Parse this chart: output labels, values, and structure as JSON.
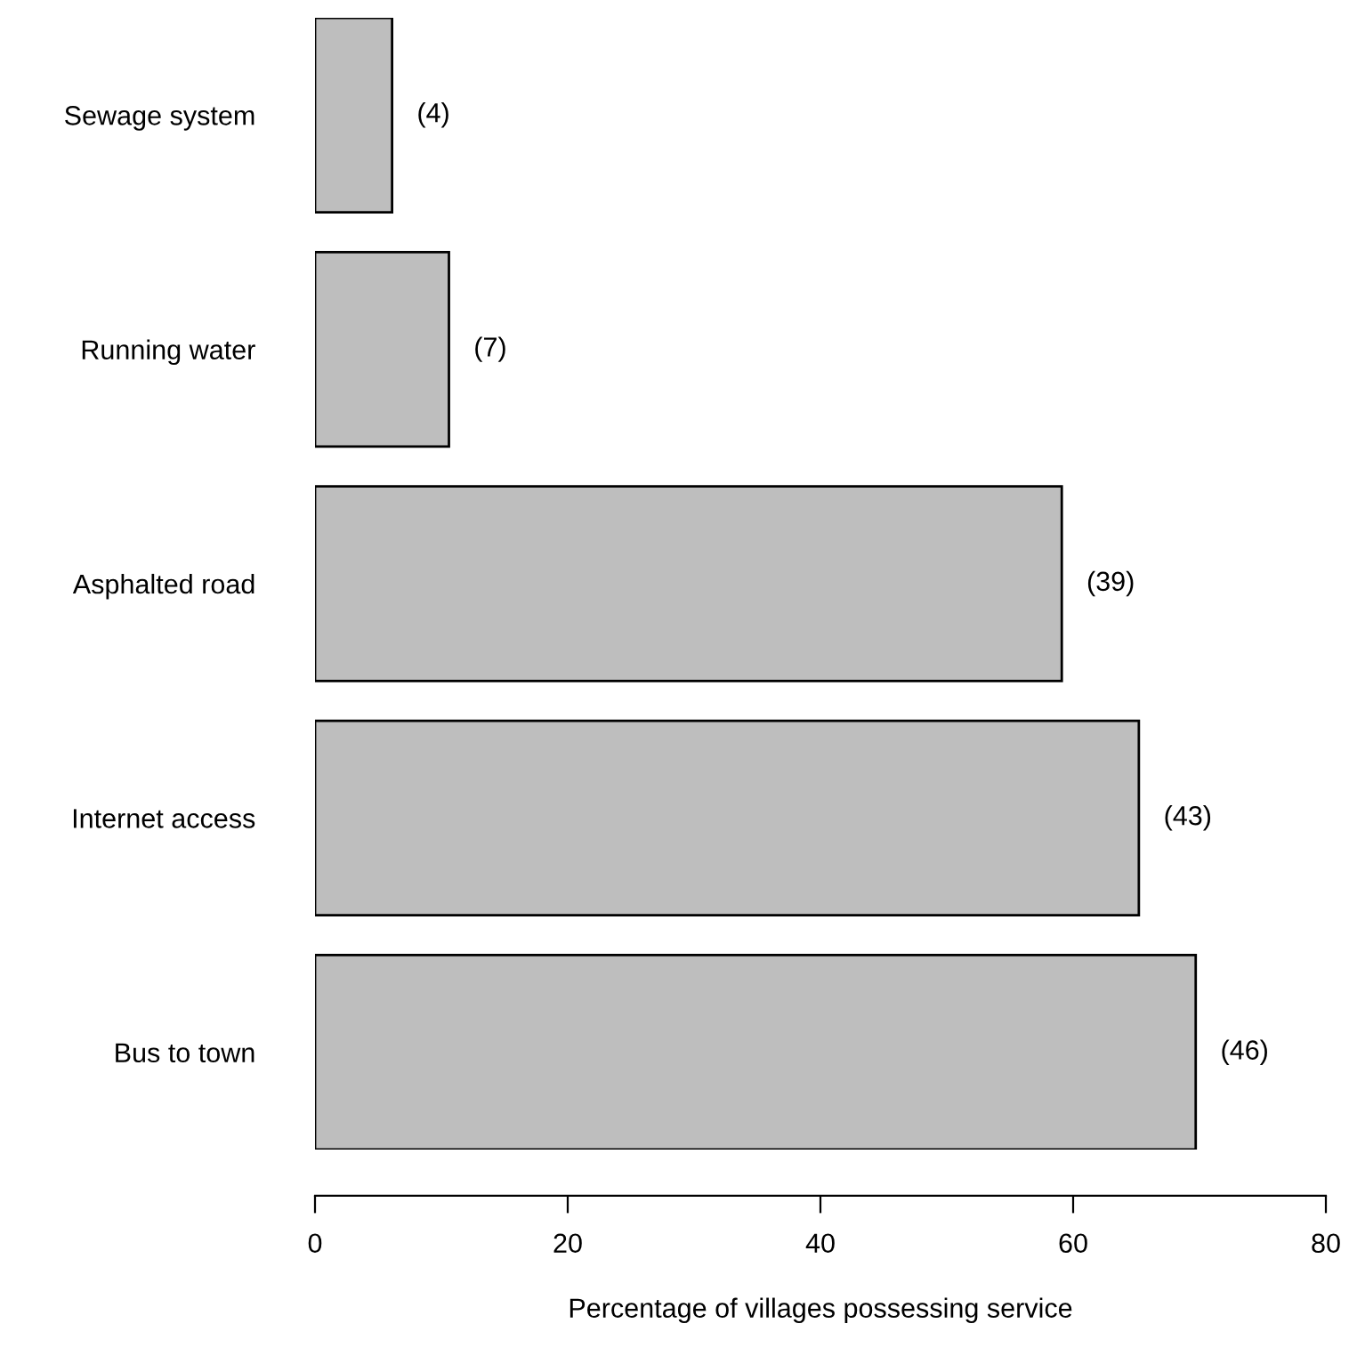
{
  "chart_data": {
    "type": "bar",
    "orientation": "horizontal",
    "xlabel": "Percentage of villages possessing service",
    "categories": [
      "Sewage system",
      "Running water",
      "Asphalted road",
      "Internet access",
      "Bus to town"
    ],
    "values": [
      6.1,
      10.6,
      59.1,
      65.2,
      69.7
    ],
    "annotations": [
      {
        "text": "(4)",
        "x": 6.1,
        "y": "Sewage system"
      },
      {
        "text": "(7)",
        "x": 10.6,
        "y": "Running water"
      },
      {
        "text": "(39)",
        "x": 59.1,
        "y": "Asphalted road"
      },
      {
        "text": "(43)",
        "x": 65.2,
        "y": "Internet access"
      },
      {
        "text": "(46)",
        "x": 69.7,
        "y": "Bus to town"
      }
    ],
    "color": "#bebebe",
    "xlim": [
      0,
      80
    ],
    "xticks": [
      0,
      20,
      40,
      60,
      80
    ],
    "grid": false
  }
}
